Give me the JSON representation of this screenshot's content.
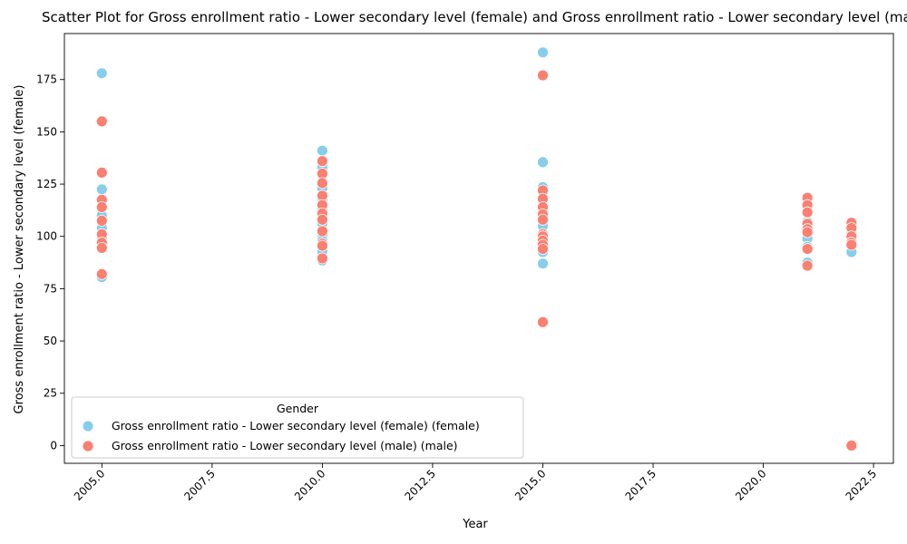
{
  "chart_data": {
    "type": "scatter",
    "title": "Scatter Plot for Gross enrollment ratio - Lower secondary level (female) and Gross enrollment ratio - Lower secondary level (male)",
    "xlabel": "Year",
    "ylabel": "Gross enrollment ratio - Lower secondary level (female)",
    "xlim": [
      2004.15,
      2022.95
    ],
    "ylim": [
      -8.5,
      197
    ],
    "xticks": [
      2005.0,
      2007.5,
      2010.0,
      2012.5,
      2015.0,
      2017.5,
      2020.0,
      2022.5
    ],
    "xtick_labels": [
      "2005.0",
      "2007.5",
      "2010.0",
      "2012.5",
      "2015.0",
      "2017.5",
      "2020.0",
      "2022.5"
    ],
    "yticks": [
      0,
      25,
      50,
      75,
      100,
      125,
      150,
      175
    ],
    "ytick_labels": [
      "0",
      "25",
      "50",
      "75",
      "100",
      "125",
      "150",
      "175"
    ],
    "grid": false,
    "legend": {
      "title": "Gender",
      "placement": "lower-left"
    },
    "series": [
      {
        "name": "Gross enrollment ratio - Lower secondary level (female) (female)",
        "color": "#87ceeb",
        "points": [
          {
            "x": 2005,
            "y": 178
          },
          {
            "x": 2005,
            "y": 122.5
          },
          {
            "x": 2005,
            "y": 117
          },
          {
            "x": 2005,
            "y": 110
          },
          {
            "x": 2005,
            "y": 104
          },
          {
            "x": 2005,
            "y": 99
          },
          {
            "x": 2005,
            "y": 95
          },
          {
            "x": 2005,
            "y": 80.5
          },
          {
            "x": 2010,
            "y": 141
          },
          {
            "x": 2010,
            "y": 133
          },
          {
            "x": 2010,
            "y": 123
          },
          {
            "x": 2010,
            "y": 118
          },
          {
            "x": 2010,
            "y": 113
          },
          {
            "x": 2010,
            "y": 106
          },
          {
            "x": 2010,
            "y": 100
          },
          {
            "x": 2010,
            "y": 98
          },
          {
            "x": 2010,
            "y": 93
          },
          {
            "x": 2010,
            "y": 88.5
          },
          {
            "x": 2015,
            "y": 188
          },
          {
            "x": 2015,
            "y": 135.5
          },
          {
            "x": 2015,
            "y": 123.5
          },
          {
            "x": 2015,
            "y": 115
          },
          {
            "x": 2015,
            "y": 111
          },
          {
            "x": 2015,
            "y": 105
          },
          {
            "x": 2015,
            "y": 98
          },
          {
            "x": 2015,
            "y": 95
          },
          {
            "x": 2015,
            "y": 92.5
          },
          {
            "x": 2015,
            "y": 87
          },
          {
            "x": 2021,
            "y": 112
          },
          {
            "x": 2021,
            "y": 107
          },
          {
            "x": 2021,
            "y": 101
          },
          {
            "x": 2021,
            "y": 99
          },
          {
            "x": 2021,
            "y": 95
          },
          {
            "x": 2021,
            "y": 87.5
          },
          {
            "x": 2022,
            "y": 106
          },
          {
            "x": 2022,
            "y": 101.5
          },
          {
            "x": 2022,
            "y": 98
          },
          {
            "x": 2022,
            "y": 95
          },
          {
            "x": 2022,
            "y": 92.5
          }
        ]
      },
      {
        "name": "Gross enrollment ratio - Lower secondary level (male) (male)",
        "color": "#fa8072",
        "points": [
          {
            "x": 2005,
            "y": 155
          },
          {
            "x": 2005,
            "y": 130.5
          },
          {
            "x": 2005,
            "y": 117.5
          },
          {
            "x": 2005,
            "y": 114
          },
          {
            "x": 2005,
            "y": 107.5
          },
          {
            "x": 2005,
            "y": 101
          },
          {
            "x": 2005,
            "y": 97
          },
          {
            "x": 2005,
            "y": 94.5
          },
          {
            "x": 2005,
            "y": 82
          },
          {
            "x": 2010,
            "y": 136
          },
          {
            "x": 2010,
            "y": 130
          },
          {
            "x": 2010,
            "y": 125.5
          },
          {
            "x": 2010,
            "y": 119.5
          },
          {
            "x": 2010,
            "y": 115
          },
          {
            "x": 2010,
            "y": 111
          },
          {
            "x": 2010,
            "y": 108
          },
          {
            "x": 2010,
            "y": 102.5
          },
          {
            "x": 2010,
            "y": 96.5
          },
          {
            "x": 2010,
            "y": 95.5
          },
          {
            "x": 2010,
            "y": 89.5
          },
          {
            "x": 2015,
            "y": 177
          },
          {
            "x": 2015,
            "y": 122
          },
          {
            "x": 2015,
            "y": 118
          },
          {
            "x": 2015,
            "y": 114
          },
          {
            "x": 2015,
            "y": 110.5
          },
          {
            "x": 2015,
            "y": 108
          },
          {
            "x": 2015,
            "y": 101
          },
          {
            "x": 2015,
            "y": 100
          },
          {
            "x": 2015,
            "y": 98
          },
          {
            "x": 2015,
            "y": 96
          },
          {
            "x": 2015,
            "y": 94
          },
          {
            "x": 2015,
            "y": 59
          },
          {
            "x": 2021,
            "y": 118.5
          },
          {
            "x": 2021,
            "y": 115
          },
          {
            "x": 2021,
            "y": 111.5
          },
          {
            "x": 2021,
            "y": 106
          },
          {
            "x": 2021,
            "y": 103.5
          },
          {
            "x": 2021,
            "y": 102
          },
          {
            "x": 2021,
            "y": 94
          },
          {
            "x": 2021,
            "y": 86
          },
          {
            "x": 2022,
            "y": 106.5
          },
          {
            "x": 2022,
            "y": 104
          },
          {
            "x": 2022,
            "y": 100
          },
          {
            "x": 2022,
            "y": 97
          },
          {
            "x": 2022,
            "y": 96
          },
          {
            "x": 2022,
            "y": 0
          }
        ]
      }
    ]
  }
}
